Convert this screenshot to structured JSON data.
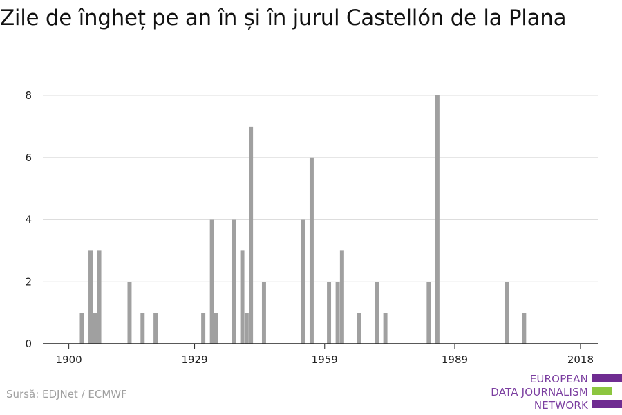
{
  "title": "Zile de îngheț pe an în și în jurul Castellón de la Plana",
  "source": "Sursă: EDJNet / ECMWF",
  "logo": {
    "line1": "EUROPEAN",
    "line2": "DATA JOURNALISM",
    "line3": "NETWORK",
    "colors": {
      "purple": "#6f2c91",
      "green": "#8cc63f"
    }
  },
  "chart_data": {
    "type": "bar",
    "title": "Zile de îngheț pe an în și în jurul Castellón de la Plana",
    "xlabel": "",
    "ylabel": "",
    "xlim": [
      1894,
      2022
    ],
    "ylim": [
      0,
      8
    ],
    "x_ticks": [
      1900,
      1929,
      1959,
      1989,
      2018
    ],
    "y_ticks": [
      0,
      2,
      4,
      6,
      8
    ],
    "grid": true,
    "bar_color": "#a0a0a0",
    "points": [
      {
        "x": 1903,
        "y": 1
      },
      {
        "x": 1905,
        "y": 3
      },
      {
        "x": 1906,
        "y": 1
      },
      {
        "x": 1907,
        "y": 3
      },
      {
        "x": 1914,
        "y": 2
      },
      {
        "x": 1917,
        "y": 1
      },
      {
        "x": 1920,
        "y": 1
      },
      {
        "x": 1931,
        "y": 1
      },
      {
        "x": 1933,
        "y": 4
      },
      {
        "x": 1934,
        "y": 1
      },
      {
        "x": 1938,
        "y": 4
      },
      {
        "x": 1940,
        "y": 3
      },
      {
        "x": 1941,
        "y": 1
      },
      {
        "x": 1942,
        "y": 7
      },
      {
        "x": 1945,
        "y": 2
      },
      {
        "x": 1954,
        "y": 4
      },
      {
        "x": 1956,
        "y": 6
      },
      {
        "x": 1960,
        "y": 2
      },
      {
        "x": 1962,
        "y": 2
      },
      {
        "x": 1963,
        "y": 3
      },
      {
        "x": 1967,
        "y": 1
      },
      {
        "x": 1971,
        "y": 2
      },
      {
        "x": 1973,
        "y": 1
      },
      {
        "x": 1983,
        "y": 2
      },
      {
        "x": 1985,
        "y": 8
      },
      {
        "x": 2001,
        "y": 2
      },
      {
        "x": 2005,
        "y": 1
      }
    ]
  }
}
